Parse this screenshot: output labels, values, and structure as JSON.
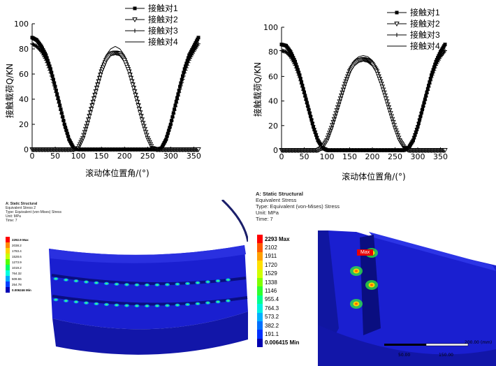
{
  "chart_data": [
    {
      "type": "line",
      "xlabel": "滚动体位置角/(°)",
      "ylabel": "接触载荷Q/KN",
      "xlim": [
        0,
        360
      ],
      "ylim": [
        0,
        100
      ],
      "xticks": [
        0,
        50,
        100,
        150,
        200,
        250,
        300,
        350
      ],
      "yticks": [
        0,
        20,
        40,
        60,
        80,
        100
      ],
      "legend_position": "top-right",
      "x": [
        0,
        10,
        20,
        30,
        40,
        50,
        60,
        70,
        80,
        90,
        100,
        110,
        120,
        130,
        140,
        150,
        160,
        170,
        180,
        190,
        200,
        210,
        220,
        230,
        240,
        250,
        260,
        270,
        280,
        290,
        300,
        310,
        320,
        330,
        340,
        350,
        360
      ],
      "series": [
        {
          "name": "接触对1",
          "marker": "square",
          "values": [
            89,
            87,
            82,
            75,
            64,
            50,
            35,
            20,
            8,
            1,
            0,
            0,
            0,
            0,
            0,
            0,
            0,
            0,
            0,
            0,
            0,
            0,
            0,
            0,
            0,
            0,
            0,
            0,
            1,
            8,
            20,
            35,
            50,
            64,
            75,
            82,
            89
          ]
        },
        {
          "name": "接触对2",
          "marker": "triangle-down",
          "values": [
            0,
            0,
            0,
            0,
            0,
            0,
            0,
            0,
            0,
            0,
            1,
            9,
            21,
            35,
            49,
            62,
            71,
            76,
            77,
            76,
            71,
            62,
            49,
            35,
            21,
            9,
            1,
            0,
            0,
            0,
            0,
            0,
            0,
            0,
            0,
            0,
            0
          ]
        },
        {
          "name": "接触对3",
          "marker": "plus",
          "values": [
            84,
            82,
            78,
            71,
            61,
            48,
            34,
            20,
            8,
            1,
            0,
            0,
            0,
            0,
            0,
            0,
            0,
            0,
            0,
            0,
            0,
            0,
            0,
            0,
            0,
            0,
            0,
            0,
            1,
            8,
            20,
            34,
            48,
            61,
            71,
            78,
            84
          ]
        },
        {
          "name": "接触对4",
          "marker": "none",
          "values": [
            0,
            0,
            0,
            0,
            0,
            0,
            0,
            0,
            0,
            0,
            1,
            10,
            23,
            38,
            52,
            66,
            75,
            80,
            82,
            80,
            75,
            66,
            52,
            38,
            23,
            10,
            1,
            0,
            0,
            0,
            0,
            0,
            0,
            0,
            0,
            0,
            0
          ]
        }
      ]
    },
    {
      "type": "line",
      "xlabel": "滚动体位置角/(°)",
      "ylabel": "接触载荷Q/KN",
      "xlim": [
        0,
        360
      ],
      "ylim": [
        0,
        100
      ],
      "xticks": [
        0,
        50,
        100,
        150,
        200,
        250,
        300,
        350
      ],
      "yticks": [
        0,
        20,
        40,
        60,
        80,
        100
      ],
      "legend_position": "top-right",
      "x": [
        0,
        10,
        20,
        30,
        40,
        50,
        60,
        70,
        80,
        90,
        100,
        110,
        120,
        130,
        140,
        150,
        160,
        170,
        180,
        190,
        200,
        210,
        220,
        230,
        240,
        250,
        260,
        270,
        280,
        290,
        300,
        310,
        320,
        330,
        340,
        350,
        360
      ],
      "series": [
        {
          "name": "接触对1",
          "marker": "square",
          "values": [
            86,
            85,
            80,
            72,
            61,
            47,
            33,
            19,
            8,
            2,
            0,
            0,
            0,
            0,
            0,
            0,
            0,
            0,
            0,
            0,
            0,
            0,
            0,
            0,
            0,
            0,
            0,
            0,
            2,
            8,
            19,
            33,
            47,
            61,
            72,
            80,
            86
          ]
        },
        {
          "name": "接触对2",
          "marker": "triangle-down",
          "values": [
            0,
            0,
            0,
            0,
            0,
            0,
            0,
            0,
            0,
            2,
            8,
            18,
            30,
            42,
            54,
            64,
            70,
            73,
            74,
            73,
            70,
            64,
            54,
            42,
            30,
            18,
            8,
            2,
            0,
            0,
            0,
            0,
            0,
            0,
            0,
            0,
            0
          ]
        },
        {
          "name": "接触对3",
          "marker": "plus",
          "values": [
            81,
            80,
            76,
            69,
            59,
            46,
            33,
            20,
            9,
            2,
            0,
            0,
            0,
            0,
            0,
            0,
            0,
            0,
            0,
            0,
            0,
            0,
            0,
            0,
            0,
            0,
            0,
            0,
            2,
            9,
            20,
            33,
            46,
            59,
            69,
            76,
            81
          ]
        },
        {
          "name": "接触对4",
          "marker": "none",
          "values": [
            0,
            0,
            0,
            0,
            0,
            0,
            0,
            0,
            0,
            2,
            9,
            19,
            31,
            44,
            56,
            66,
            73,
            76,
            77,
            76,
            73,
            66,
            56,
            44,
            31,
            19,
            9,
            2,
            0,
            0,
            0,
            0,
            0,
            0,
            0,
            0,
            0
          ]
        }
      ]
    }
  ],
  "fea": [
    {
      "header": [
        "A: Static Structural",
        "Equivalent Stress 2",
        "Type: Equivalent (von-Mises) Stress",
        "Unit: MPa",
        "Time: 7"
      ],
      "legend_labels": [
        "2292.9 Max",
        "2038.2",
        "1783.4",
        "1528.6",
        "1273.9",
        "1019.2",
        "764.32",
        "509.55",
        "254.78",
        "0.006246 Min"
      ]
    },
    {
      "header": [
        "A: Static Structural",
        "Equivalent Stress",
        "Type: Equivalent (von-Mises) Stress",
        "Unit: MPa",
        "Time: 7"
      ],
      "legend_labels": [
        "2293 Max",
        "2102",
        "1911",
        "1720",
        "1529",
        "1338",
        "1146",
        "955.4",
        "764.3",
        "573.2",
        "382.2",
        "191.1",
        "0.006415 Min"
      ],
      "probe_label": "Max",
      "scale_labels": [
        "50.00",
        "150.00",
        "200.00 (mm)"
      ]
    }
  ],
  "colors": {
    "line": "#000000",
    "mesh_blue": "#1a1fd0",
    "legend_ramp_10": [
      "#ff0000",
      "#ff8a00",
      "#ffd200",
      "#c8ff00",
      "#55ff00",
      "#00ff66",
      "#00ffe0",
      "#00a8ff",
      "#0040ff",
      "#0000b4"
    ],
    "legend_ramp_13": [
      "#ff0000",
      "#ff5a00",
      "#ffa000",
      "#ffe000",
      "#d0ff00",
      "#80ff00",
      "#30ff30",
      "#00ff90",
      "#00f0e0",
      "#00b0ff",
      "#0070ff",
      "#0030ff",
      "#0000b0"
    ]
  }
}
